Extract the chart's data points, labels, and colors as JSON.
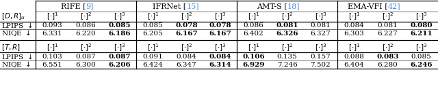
{
  "methods": [
    "RIFE",
    "IFRNet",
    "AMT-S",
    "EMA-VFI"
  ],
  "method_refs": [
    "9",
    "15",
    "18",
    "42"
  ],
  "blue_color": "#4a8fd4",
  "DR_data": {
    "LPIPS": [
      [
        "0.093",
        "0.086",
        "0.085"
      ],
      [
        "0.085",
        "0.078",
        "0.078"
      ],
      [
        "0.086",
        "0.081",
        "0.081"
      ],
      [
        "0.084",
        "0.081",
        "0.080"
      ]
    ],
    "NIQE": [
      [
        "6.331",
        "6.220",
        "6.186"
      ],
      [
        "6.205",
        "6.167",
        "6.167"
      ],
      [
        "6.402",
        "6.326",
        "6.327"
      ],
      [
        "6.303",
        "6.227",
        "6.211"
      ]
    ]
  },
  "TR_data": {
    "LPIPS": [
      [
        "0.103",
        "0.087",
        "0.087"
      ],
      [
        "0.091",
        "0.084",
        "0.084"
      ],
      [
        "0.106",
        "0.135",
        "0.157"
      ],
      [
        "0.088",
        "0.083",
        "0.085"
      ]
    ],
    "NIQE": [
      [
        "6.551",
        "6.300",
        "6.206"
      ],
      [
        "6.424",
        "6.347",
        "6.314"
      ],
      [
        "6.929",
        "7.246",
        "7.502"
      ],
      [
        "6.404",
        "6.280",
        "6.246"
      ]
    ]
  },
  "DR_bold": {
    "LPIPS": [
      [
        false,
        false,
        true
      ],
      [
        false,
        true,
        true
      ],
      [
        false,
        true,
        false
      ],
      [
        false,
        false,
        true
      ]
    ],
    "NIQE": [
      [
        false,
        false,
        true
      ],
      [
        false,
        true,
        true
      ],
      [
        false,
        true,
        false
      ],
      [
        false,
        false,
        true
      ]
    ]
  },
  "TR_bold": {
    "LPIPS": [
      [
        false,
        false,
        true
      ],
      [
        false,
        false,
        true
      ],
      [
        true,
        false,
        false
      ],
      [
        false,
        true,
        false
      ]
    ],
    "NIQE": [
      [
        false,
        false,
        true
      ],
      [
        false,
        false,
        true
      ],
      [
        true,
        false,
        false
      ],
      [
        false,
        false,
        true
      ]
    ]
  },
  "background_color": "#ffffff",
  "font_size": 7.5,
  "header_font_size": 8.0
}
